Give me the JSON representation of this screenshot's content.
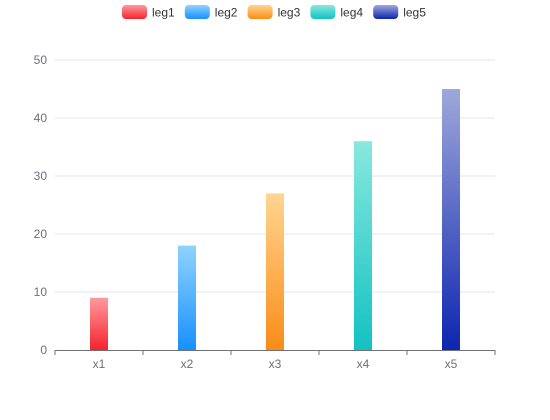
{
  "chart_data": {
    "type": "bar",
    "categories": [
      "x1",
      "x2",
      "x3",
      "x4",
      "x5"
    ],
    "series": [
      {
        "name": "leg1",
        "values": [
          9,
          null,
          null,
          null,
          null
        ],
        "color_top": "#ff9a9e",
        "color_bottom": "#f5222d"
      },
      {
        "name": "leg2",
        "values": [
          null,
          18,
          null,
          null,
          null
        ],
        "color_top": "#8fd3fe",
        "color_bottom": "#1890ff"
      },
      {
        "name": "leg3",
        "values": [
          null,
          null,
          27,
          null,
          null
        ],
        "color_top": "#ffd591",
        "color_bottom": "#fa8c16"
      },
      {
        "name": "leg4",
        "values": [
          null,
          null,
          null,
          36,
          null
        ],
        "color_top": "#87e8de",
        "color_bottom": "#13c2c2"
      },
      {
        "name": "leg5",
        "values": [
          null,
          null,
          null,
          null,
          45
        ],
        "color_top": "#9fa8da",
        "color_bottom": "#0d25b0"
      }
    ],
    "yticks": [
      "0",
      "10",
      "20",
      "30",
      "40",
      "50"
    ],
    "ylim": [
      0,
      50
    ],
    "grid": true,
    "legend_position": "top-center"
  }
}
